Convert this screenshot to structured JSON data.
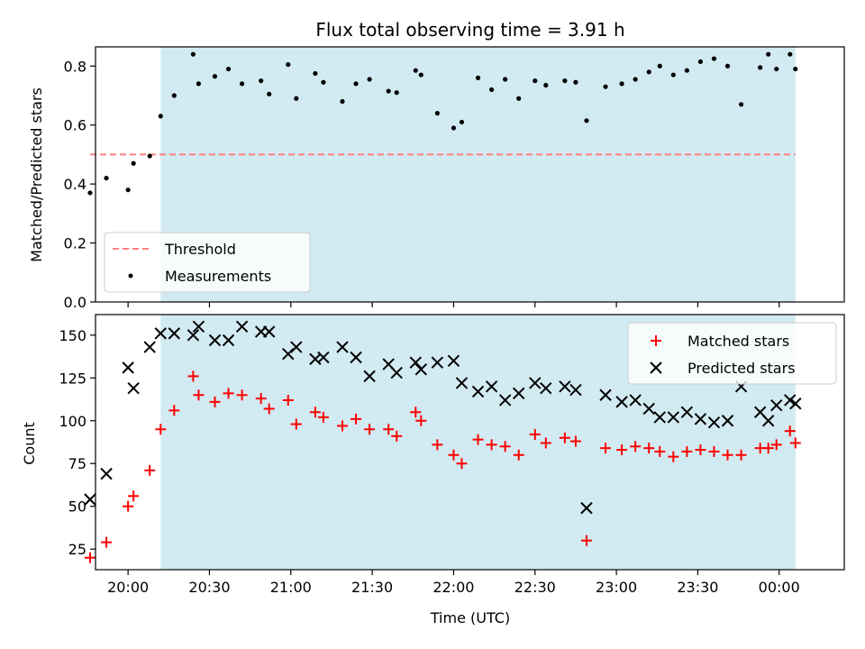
{
  "figure": {
    "title": "Flux total observing time = 3.91 h",
    "xlabel": "Time (UTC)"
  },
  "colors": {
    "shade": "#add8e6",
    "threshold": "#ff7f7f",
    "measurement": "#000000",
    "matched": "#ff0000",
    "predicted": "#000000"
  },
  "chart_data": [
    {
      "type": "scatter",
      "ylabel": "Matched/Predicted stars",
      "xlim": [
        "19:48",
        "00:24"
      ],
      "ylim": [
        0,
        0.865
      ],
      "yticks": [
        0.0,
        0.2,
        0.4,
        0.6,
        0.8
      ],
      "ytick_labels": [
        "0.0",
        "0.2",
        "0.4",
        "0.6",
        "0.8"
      ],
      "x_tick_labels_visible": false,
      "shaded_interval": [
        "20:12",
        "00:06"
      ],
      "grid": false,
      "legend": {
        "placement": "lower-left",
        "entries": [
          {
            "label": "Threshold",
            "kind": "line"
          },
          {
            "label": "Measurements",
            "kind": "dot"
          }
        ]
      },
      "threshold": {
        "name": "Threshold",
        "x": [
          "19:46",
          "00:06"
        ],
        "y": 0.5
      },
      "series": [
        {
          "name": "Measurements",
          "marker": "dot",
          "x": [
            "19:46",
            "19:52",
            "20:00",
            "20:02",
            "20:08",
            "20:12",
            "20:17",
            "20:24",
            "20:26",
            "20:32",
            "20:37",
            "20:42",
            "20:49",
            "20:52",
            "20:59",
            "21:02",
            "21:09",
            "21:12",
            "21:19",
            "21:24",
            "21:29",
            "21:36",
            "21:39",
            "21:46",
            "21:48",
            "21:54",
            "22:00",
            "22:03",
            "22:09",
            "22:14",
            "22:19",
            "22:24",
            "22:30",
            "22:34",
            "22:41",
            "22:45",
            "22:49",
            "22:56",
            "23:02",
            "23:07",
            "23:12",
            "23:16",
            "23:21",
            "23:26",
            "23:31",
            "23:36",
            "23:41",
            "23:46",
            "23:53",
            "23:56",
            "23:59",
            "00:04",
            "00:06"
          ],
          "y": [
            0.37,
            0.42,
            0.38,
            0.47,
            0.495,
            0.63,
            0.7,
            0.84,
            0.74,
            0.765,
            0.79,
            0.74,
            0.75,
            0.705,
            0.805,
            0.69,
            0.775,
            0.745,
            0.68,
            0.74,
            0.755,
            0.715,
            0.71,
            0.785,
            0.77,
            0.64,
            0.59,
            0.61,
            0.76,
            0.72,
            0.755,
            0.69,
            0.75,
            0.735,
            0.75,
            0.745,
            0.615,
            0.73,
            0.74,
            0.755,
            0.78,
            0.8,
            0.77,
            0.785,
            0.815,
            0.825,
            0.8,
            0.67,
            0.795,
            0.84,
            0.79,
            0.84,
            0.79
          ]
        }
      ]
    },
    {
      "type": "scatter",
      "ylabel": "Count",
      "xlim": [
        "19:48",
        "00:24"
      ],
      "ylim": [
        13,
        162
      ],
      "yticks": [
        25,
        50,
        75,
        100,
        125,
        150
      ],
      "ytick_labels": [
        "25",
        "50",
        "75",
        "100",
        "125",
        "150"
      ],
      "xticks": [
        "20:00",
        "20:30",
        "21:00",
        "21:30",
        "22:00",
        "22:30",
        "23:00",
        "23:30",
        "00:00"
      ],
      "xtick_labels": [
        "20:00",
        "20:30",
        "21:00",
        "21:30",
        "22:00",
        "22:30",
        "23:00",
        "23:30",
        "00:00"
      ],
      "shaded_interval": [
        "20:12",
        "00:06"
      ],
      "grid": false,
      "legend": {
        "placement": "top-right",
        "entries": [
          {
            "label": "Matched stars",
            "kind": "plus"
          },
          {
            "label": "Predicted stars",
            "kind": "cross"
          }
        ]
      },
      "series": [
        {
          "name": "Matched stars",
          "marker": "plus",
          "x": [
            "19:46",
            "19:52",
            "20:00",
            "20:02",
            "20:08",
            "20:12",
            "20:17",
            "20:24",
            "20:26",
            "20:32",
            "20:37",
            "20:42",
            "20:49",
            "20:52",
            "20:59",
            "21:02",
            "21:09",
            "21:12",
            "21:19",
            "21:24",
            "21:29",
            "21:36",
            "21:39",
            "21:46",
            "21:48",
            "21:54",
            "22:00",
            "22:03",
            "22:09",
            "22:14",
            "22:19",
            "22:24",
            "22:30",
            "22:34",
            "22:41",
            "22:45",
            "22:49",
            "22:56",
            "23:02",
            "23:07",
            "23:12",
            "23:16",
            "23:21",
            "23:26",
            "23:31",
            "23:36",
            "23:41",
            "23:46",
            "23:53",
            "23:56",
            "23:59",
            "00:04",
            "00:06"
          ],
          "y": [
            20,
            29,
            50,
            56,
            71,
            95,
            106,
            126,
            115,
            111,
            116,
            115,
            113,
            107,
            112,
            98,
            105,
            102,
            97,
            101,
            95,
            95,
            91,
            105,
            100,
            86,
            80,
            75,
            89,
            86,
            85,
            80,
            92,
            87,
            90,
            88,
            30,
            84,
            83,
            85,
            84,
            82,
            79,
            82,
            83,
            82,
            80,
            80,
            84,
            84,
            86,
            94,
            87
          ]
        },
        {
          "name": "Predicted stars",
          "marker": "cross",
          "x": [
            "19:46",
            "19:52",
            "20:00",
            "20:02",
            "20:08",
            "20:12",
            "20:17",
            "20:24",
            "20:26",
            "20:32",
            "20:37",
            "20:42",
            "20:49",
            "20:52",
            "20:59",
            "21:02",
            "21:09",
            "21:12",
            "21:19",
            "21:24",
            "21:29",
            "21:36",
            "21:39",
            "21:46",
            "21:48",
            "21:54",
            "22:00",
            "22:03",
            "22:09",
            "22:14",
            "22:19",
            "22:24",
            "22:30",
            "22:34",
            "22:41",
            "22:45",
            "22:49",
            "22:56",
            "23:02",
            "23:07",
            "23:12",
            "23:16",
            "23:21",
            "23:26",
            "23:31",
            "23:36",
            "23:41",
            "23:46",
            "23:53",
            "23:56",
            "23:59",
            "00:04",
            "00:06"
          ],
          "y": [
            54,
            69,
            131,
            119,
            143,
            151,
            151,
            150,
            155,
            147,
            147,
            155,
            152,
            152,
            139,
            143,
            136,
            137,
            143,
            137,
            126,
            133,
            128,
            134,
            130,
            134,
            135,
            122,
            117,
            120,
            112,
            116,
            122,
            119,
            120,
            118,
            49,
            115,
            111,
            112,
            107,
            102,
            102,
            105,
            101,
            99,
            100,
            120,
            105,
            100,
            109,
            112,
            110
          ]
        }
      ]
    }
  ]
}
